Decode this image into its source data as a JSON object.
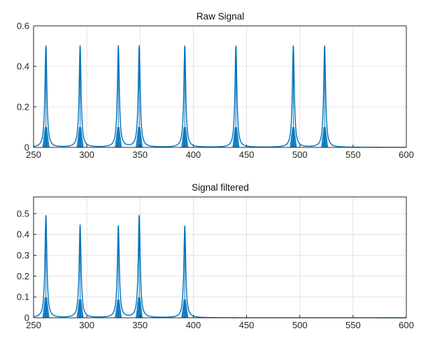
{
  "chart_data": [
    {
      "type": "line",
      "title": "Raw Signal",
      "xlabel": "",
      "ylabel": "",
      "xlim": [
        250,
        600
      ],
      "ylim": [
        0,
        0.6
      ],
      "xticks": [
        250,
        300,
        350,
        400,
        450,
        500,
        550,
        600
      ],
      "yticks": [
        0,
        0.2,
        0.4,
        0.6
      ],
      "grid": true,
      "color": "#0072BD",
      "peaks": [
        {
          "x": 261.6,
          "y": 0.5
        },
        {
          "x": 293.7,
          "y": 0.5
        },
        {
          "x": 329.6,
          "y": 0.5
        },
        {
          "x": 349.2,
          "y": 0.5
        },
        {
          "x": 392.0,
          "y": 0.5
        },
        {
          "x": 440.0,
          "y": 0.5
        },
        {
          "x": 493.9,
          "y": 0.5
        },
        {
          "x": 523.3,
          "y": 0.5
        }
      ]
    },
    {
      "type": "line",
      "title": "Signal filtered",
      "xlabel": "",
      "ylabel": "",
      "xlim": [
        250,
        600
      ],
      "ylim": [
        0,
        0.58
      ],
      "xticks": [
        250,
        300,
        350,
        400,
        450,
        500,
        550,
        600
      ],
      "yticks": [
        0,
        0.1,
        0.2,
        0.3,
        0.4,
        0.5
      ],
      "grid": true,
      "color": "#0072BD",
      "peaks": [
        {
          "x": 261.6,
          "y": 0.49
        },
        {
          "x": 293.7,
          "y": 0.445
        },
        {
          "x": 329.6,
          "y": 0.44
        },
        {
          "x": 349.2,
          "y": 0.49
        },
        {
          "x": 392.0,
          "y": 0.44
        }
      ]
    }
  ]
}
